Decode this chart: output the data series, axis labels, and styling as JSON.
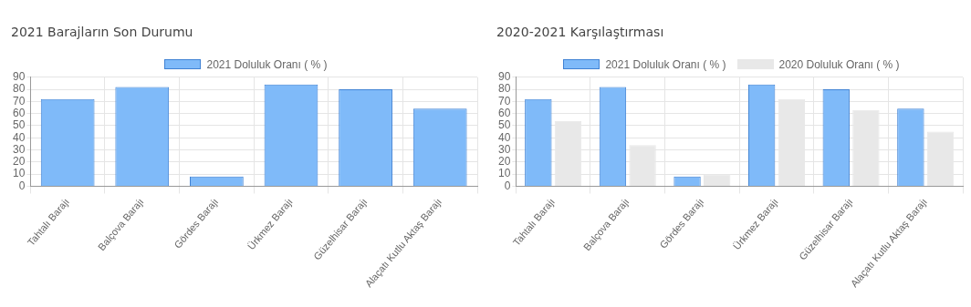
{
  "chart_data": [
    {
      "type": "bar",
      "title": "2021 Barajların Son Durumu",
      "categories": [
        "Tahtalı Barajı",
        "Balçova Barajı",
        "Gördes Barajı",
        "Ürkmez Barajı",
        "Güzelhisar Barajı",
        "Alaçatı Kutlu Aktaş Barajı"
      ],
      "series": [
        {
          "name": "2021 Doluluk Oranı ( % )",
          "color": "#7fbaf9",
          "values": [
            72,
            82,
            8,
            84,
            80,
            64
          ]
        }
      ],
      "ylim": [
        0,
        90
      ],
      "yticks": [
        0,
        10,
        20,
        30,
        40,
        50,
        60,
        70,
        80,
        90
      ],
      "grid": true,
      "legend": "top"
    },
    {
      "type": "bar",
      "title": "2020-2021 Karşılaştırması",
      "categories": [
        "Tahtalı Barajı",
        "Balçova Barajı",
        "Gördes Barajı",
        "Ürkmez Barajı",
        "Güzelhisar Barajı",
        "Alaçatı Kutlu Aktaş Barajı"
      ],
      "series": [
        {
          "name": "2021 Doluluk Oranı ( % )",
          "color": "#7fbaf9",
          "values": [
            72,
            82,
            8,
            84,
            80,
            64
          ]
        },
        {
          "name": "2020 Doluluk Oranı ( % )",
          "color": "#e8e8e8",
          "values": [
            54,
            34,
            10,
            72,
            63,
            45
          ]
        }
      ],
      "ylim": [
        0,
        90
      ],
      "yticks": [
        0,
        10,
        20,
        30,
        40,
        50,
        60,
        70,
        80,
        90
      ],
      "grid": true,
      "legend": "top"
    }
  ]
}
